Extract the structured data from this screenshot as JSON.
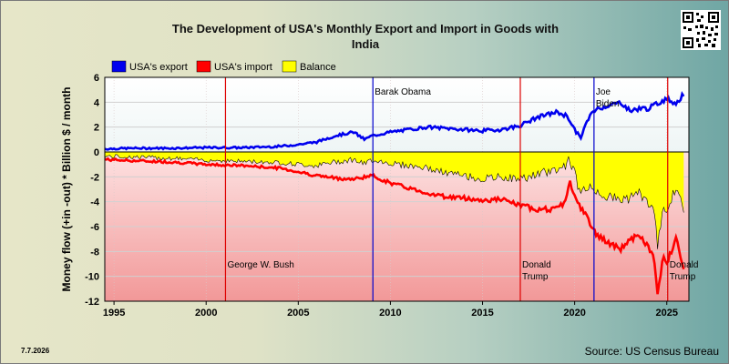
{
  "chart_data": {
    "type": "line",
    "title": "The Development of USA's Monthly Export and Import in Goods with India",
    "title_lines": [
      "The Development of USA's Monthly Export and Import in Goods with",
      "India"
    ],
    "ylabel": "Money flow (+in -out) * Billion $ / month",
    "xlim": [
      1994.5,
      2026.2
    ],
    "ylim": [
      -12,
      6
    ],
    "yticks": [
      "6",
      "4",
      "2",
      "0",
      "-2",
      "-4",
      "-6",
      "-8",
      "-10",
      "-12"
    ],
    "xticks": [
      "1995",
      "2000",
      "2005",
      "2010",
      "2015",
      "2020",
      "2025"
    ],
    "grid": true,
    "legend_position": "top-left",
    "series": [
      {
        "name": "USA's export",
        "color": "#0000ee",
        "x": [
          1994.5,
          1996,
          1998,
          2000,
          2002,
          2004,
          2005,
          2006,
          2007,
          2008,
          2008.6,
          2009,
          2010,
          2011,
          2012,
          2013,
          2014,
          2015,
          2016,
          2017,
          2018,
          2019,
          2019.6,
          2020.0,
          2020.3,
          2020.6,
          2021,
          2021.5,
          2022,
          2022.5,
          2023,
          2023.5,
          2024,
          2024.5,
          2025,
          2025.5,
          2025.9
        ],
        "y": [
          0.25,
          0.3,
          0.3,
          0.35,
          0.35,
          0.45,
          0.6,
          0.8,
          1.3,
          1.6,
          1.0,
          1.3,
          1.6,
          1.8,
          2.0,
          1.9,
          1.8,
          1.7,
          1.8,
          2.1,
          2.8,
          3.2,
          2.9,
          1.8,
          1.1,
          2.2,
          3.3,
          3.6,
          3.8,
          4.0,
          3.3,
          3.5,
          3.5,
          3.9,
          4.3,
          3.9,
          4.6
        ]
      },
      {
        "name": "USA's import",
        "color": "#ff0000",
        "x": [
          1994.5,
          1996,
          1998,
          2000,
          2002,
          2004,
          2005,
          2006,
          2007,
          2008,
          2008.6,
          2009,
          2010,
          2011,
          2012,
          2013,
          2014,
          2015,
          2016,
          2017,
          2018,
          2019,
          2019.5,
          2019.7,
          2020.0,
          2020.3,
          2020.6,
          2021,
          2021.5,
          2022,
          2022.5,
          2023,
          2023.5,
          2024,
          2024.3,
          2024.5,
          2024.8,
          2025,
          2025.5,
          2025.9
        ],
        "y": [
          -0.6,
          -0.7,
          -0.8,
          -1.0,
          -1.1,
          -1.3,
          -1.6,
          -1.9,
          -2.1,
          -2.2,
          -2.0,
          -1.9,
          -2.5,
          -2.9,
          -3.3,
          -3.6,
          -3.7,
          -3.9,
          -3.8,
          -4.3,
          -4.6,
          -4.6,
          -4.0,
          -2.3,
          -3.5,
          -4.5,
          -5.0,
          -6.3,
          -7.0,
          -7.5,
          -7.8,
          -7.0,
          -6.8,
          -7.6,
          -8.5,
          -11.5,
          -8.5,
          -9.0,
          -6.8,
          -9.2
        ]
      },
      {
        "name": "Balance",
        "color": "#ffff00",
        "x": [
          1994.5,
          1996,
          1998,
          2000,
          2002,
          2004,
          2005,
          2006,
          2007,
          2008,
          2008.6,
          2009,
          2010,
          2011,
          2012,
          2013,
          2014,
          2015,
          2016,
          2017,
          2018,
          2019,
          2019.5,
          2019.7,
          2020.0,
          2020.3,
          2020.6,
          2021,
          2021.5,
          2022,
          2022.5,
          2023,
          2023.5,
          2024,
          2024.3,
          2024.5,
          2024.8,
          2025,
          2025.5,
          2025.9
        ],
        "y": [
          -0.35,
          -0.4,
          -0.5,
          -0.65,
          -0.75,
          -0.85,
          -1.0,
          -1.1,
          -0.8,
          -0.6,
          -1.0,
          -0.6,
          -0.9,
          -1.1,
          -1.3,
          -1.7,
          -1.9,
          -2.2,
          -2.0,
          -2.2,
          -1.8,
          -1.4,
          -1.1,
          -0.5,
          -1.7,
          -3.4,
          -2.8,
          -3.0,
          -3.4,
          -3.7,
          -3.8,
          -3.7,
          -3.3,
          -4.1,
          -4.6,
          -7.6,
          -4.2,
          -4.7,
          -2.9,
          -4.6
        ]
      }
    ],
    "vlines": [
      {
        "x": 2001.05,
        "color": "#dd0000",
        "label": [
          "George W. Bush"
        ],
        "label_y": -9.3
      },
      {
        "x": 2009.05,
        "color": "#0000cc",
        "label": [
          "Barak Obama"
        ],
        "label_y": 4.6
      },
      {
        "x": 2017.05,
        "color": "#dd0000",
        "label": [
          "Donald",
          "Trump"
        ],
        "label_y": -9.3
      },
      {
        "x": 2021.05,
        "color": "#0000cc",
        "label": [
          "Joe",
          "Biden"
        ],
        "label_y": 4.6
      },
      {
        "x": 2025.05,
        "color": "#dd0000",
        "label": [
          "Donald",
          "Trump"
        ],
        "label_y": -9.3
      }
    ]
  },
  "footer": {
    "date": "7.7.2026",
    "source": "Source: US Census Bureau"
  }
}
